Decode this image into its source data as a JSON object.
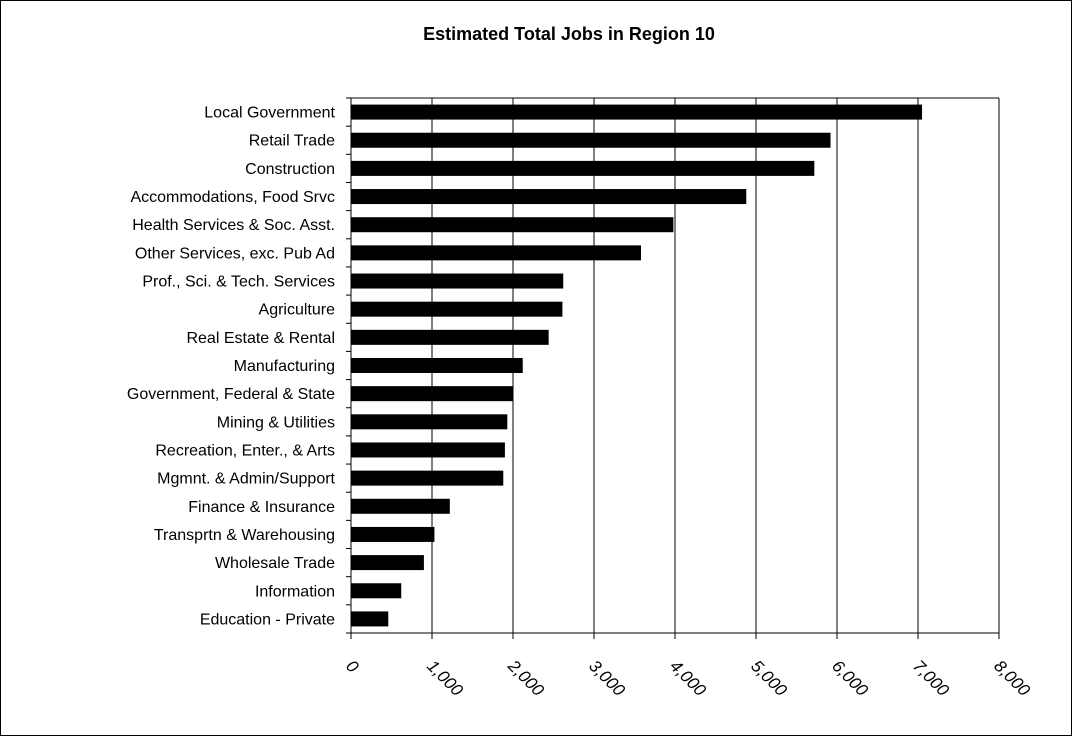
{
  "chart_data": {
    "type": "bar",
    "orientation": "horizontal",
    "title": "Estimated Total Jobs in Region 10",
    "xlabel": "",
    "ylabel": "",
    "categories": [
      "Local Government",
      "Retail Trade",
      "Construction",
      "Accommodations, Food Srvc",
      "Health Services & Soc. Asst.",
      "Other Services, exc. Pub Ad",
      "Prof., Sci. & Tech. Services",
      "Agriculture",
      "Real Estate & Rental",
      "Manufacturing",
      "Government, Federal & State",
      "Mining & Utilities",
      "Recreation, Enter., & Arts",
      "Mgmnt. & Admin/Support",
      "Finance & Insurance",
      "Transprtn & Warehousing",
      "Wholesale Trade",
      "Information",
      "Education - Private"
    ],
    "values": [
      7050,
      5920,
      5720,
      4880,
      3980,
      3580,
      2620,
      2610,
      2440,
      2120,
      2000,
      1930,
      1900,
      1880,
      1220,
      1030,
      900,
      620,
      460
    ],
    "xlim": [
      0,
      8000
    ],
    "x_ticks": [
      0,
      1000,
      2000,
      3000,
      4000,
      5000,
      6000,
      7000,
      8000
    ],
    "x_tick_labels": [
      "0",
      "1,000",
      "2,000",
      "3,000",
      "4,000",
      "5,000",
      "6,000",
      "7,000",
      "8,000"
    ],
    "grid": "vertical",
    "legend": "none",
    "bar_color": "#000000"
  }
}
